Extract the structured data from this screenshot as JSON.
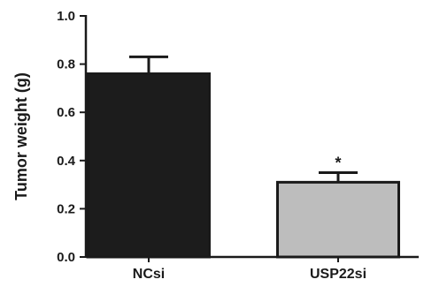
{
  "chart_data": {
    "type": "bar",
    "title": "",
    "xlabel": "",
    "ylabel": "Tumor weight (g)",
    "ylim": [
      0,
      1.0
    ],
    "yticks": [
      0.0,
      0.2,
      0.4,
      0.6,
      0.8,
      1.0
    ],
    "ytick_labels": [
      "0.0",
      "0.2",
      "0.4",
      "0.6",
      "0.8",
      "1.0"
    ],
    "categories": [
      "NCsi",
      "USP22si"
    ],
    "values": [
      0.76,
      0.31
    ],
    "errors": [
      0.07,
      0.04
    ],
    "bar_colors": [
      "#1c1c1c",
      "#bdbdbd"
    ],
    "annotations": [
      {
        "category": "USP22si",
        "text": "*"
      }
    ],
    "grid": false,
    "legend": "none"
  }
}
